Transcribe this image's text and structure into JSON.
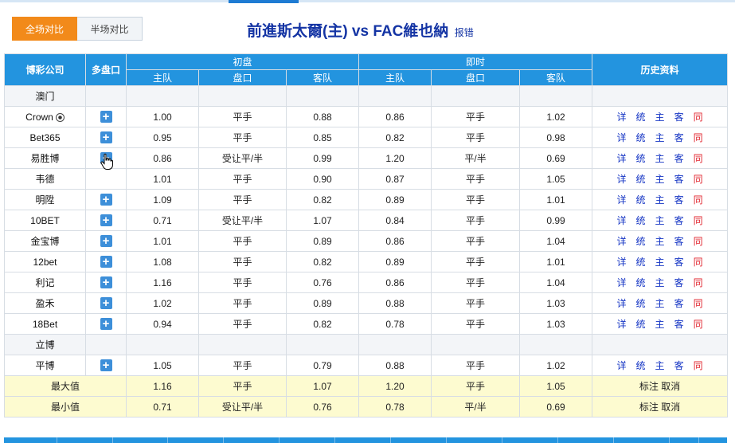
{
  "tabs": {
    "full": "全场对比",
    "half": "半场对比"
  },
  "match": {
    "title": "前進斯太爾(主) vs FAC維也納",
    "report": "报错"
  },
  "headers": {
    "company": "博彩公司",
    "multi": "多盘口",
    "initial": "初盘",
    "live": "即时",
    "history": "历史资料",
    "home": "主队",
    "line": "盘口",
    "away": "客队"
  },
  "rows": [
    {
      "company": "澳门",
      "has_plus": false,
      "empty": true,
      "ball": false,
      "i_home": "",
      "i_line": "",
      "i_away": "",
      "l_home": "",
      "l_line": "",
      "l_away": ""
    },
    {
      "company": "Crown",
      "has_plus": true,
      "empty": false,
      "ball": true,
      "i_home": "1.00",
      "i_line": "平手",
      "i_away": "0.88",
      "l_home": "0.86",
      "l_line": "平手",
      "l_away": "1.02"
    },
    {
      "company": "Bet365",
      "has_plus": true,
      "empty": false,
      "ball": false,
      "i_home": "0.95",
      "i_line": "平手",
      "i_away": "0.85",
      "l_home": "0.82",
      "l_line": "平手",
      "l_away": "0.98"
    },
    {
      "company": "易胜博",
      "has_plus": true,
      "empty": false,
      "ball": false,
      "i_home": "0.86",
      "i_line": "受让平/半",
      "i_away": "0.99",
      "l_home": "1.20",
      "l_line": "平/半",
      "l_away": "0.69"
    },
    {
      "company": "韦德",
      "has_plus": false,
      "empty": false,
      "ball": false,
      "i_home": "1.01",
      "i_line": "平手",
      "i_away": "0.90",
      "l_home": "0.87",
      "l_line": "平手",
      "l_away": "1.05"
    },
    {
      "company": "明陞",
      "has_plus": true,
      "empty": false,
      "ball": false,
      "i_home": "1.09",
      "i_line": "平手",
      "i_away": "0.82",
      "l_home": "0.89",
      "l_line": "平手",
      "l_away": "1.01"
    },
    {
      "company": "10BET",
      "has_plus": true,
      "empty": false,
      "ball": false,
      "i_home": "0.71",
      "i_line": "受让平/半",
      "i_away": "1.07",
      "l_home": "0.84",
      "l_line": "平手",
      "l_away": "0.99"
    },
    {
      "company": "金宝博",
      "has_plus": true,
      "empty": false,
      "ball": false,
      "i_home": "1.01",
      "i_line": "平手",
      "i_away": "0.89",
      "l_home": "0.86",
      "l_line": "平手",
      "l_away": "1.04"
    },
    {
      "company": "12bet",
      "has_plus": true,
      "empty": false,
      "ball": false,
      "i_home": "1.08",
      "i_line": "平手",
      "i_away": "0.82",
      "l_home": "0.89",
      "l_line": "平手",
      "l_away": "1.01"
    },
    {
      "company": "利记",
      "has_plus": true,
      "empty": false,
      "ball": false,
      "i_home": "1.16",
      "i_line": "平手",
      "i_away": "0.76",
      "l_home": "0.86",
      "l_line": "平手",
      "l_away": "1.04"
    },
    {
      "company": "盈禾",
      "has_plus": true,
      "empty": false,
      "ball": false,
      "i_home": "1.02",
      "i_line": "平手",
      "i_away": "0.89",
      "l_home": "0.88",
      "l_line": "平手",
      "l_away": "1.03"
    },
    {
      "company": "18Bet",
      "has_plus": true,
      "empty": false,
      "ball": false,
      "i_home": "0.94",
      "i_line": "平手",
      "i_away": "0.82",
      "l_home": "0.78",
      "l_line": "平手",
      "l_away": "1.03"
    },
    {
      "company": "立博",
      "has_plus": false,
      "empty": true,
      "ball": false,
      "i_home": "",
      "i_line": "",
      "i_away": "",
      "l_home": "",
      "l_line": "",
      "l_away": ""
    },
    {
      "company": "平博",
      "has_plus": true,
      "empty": false,
      "ball": false,
      "i_home": "1.05",
      "i_line": "平手",
      "i_away": "0.79",
      "l_home": "0.88",
      "l_line": "平手",
      "l_away": "1.02"
    }
  ],
  "history_links": [
    "详",
    "统",
    "主",
    "客",
    "同"
  ],
  "plus_symbol": "+",
  "summary": [
    {
      "label": "最大值",
      "i_home": "1.16",
      "i_line": "平手",
      "i_away": "1.07",
      "l_home": "1.20",
      "l_line": "平手",
      "l_away": "1.05"
    },
    {
      "label": "最小值",
      "i_home": "0.71",
      "i_line": "受让平/半",
      "i_away": "0.76",
      "l_home": "0.78",
      "l_line": "平/半",
      "l_away": "0.69"
    }
  ],
  "summary_actions": {
    "mark": "标注",
    "cancel": "取消"
  },
  "colors": {
    "header_bg": "#2394df",
    "tab_active": "#f28a1a",
    "title": "#1434a4",
    "summary_bg": "#fdfbd0",
    "link_red": "#e0202a"
  }
}
